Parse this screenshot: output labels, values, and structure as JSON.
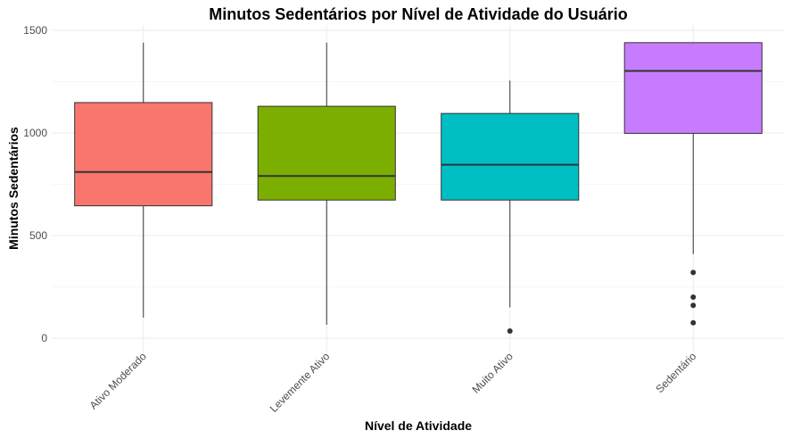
{
  "chart_data": {
    "type": "boxplot",
    "title": "Minutos Sedentários por Nível de Atividade do Usuário",
    "xlabel": "Nível de Atividade",
    "ylabel": "Minutos Sedentários",
    "ylim": [
      -30,
      1500
    ],
    "yticks": [
      0,
      500,
      1000,
      1500
    ],
    "grid": true,
    "categories": [
      "Ativo Moderado",
      "Levemente Ativo",
      "Muito Ativo",
      "Sedentário"
    ],
    "series": [
      {
        "category": "Ativo Moderado",
        "color": "#F8766D",
        "whisker_low": 100,
        "q1": 645,
        "median": 810,
        "q3": 1148,
        "whisker_high": 1440,
        "outliers": []
      },
      {
        "category": "Levemente Ativo",
        "color": "#7CAE00",
        "whisker_low": 65,
        "q1": 673,
        "median": 790,
        "q3": 1130,
        "whisker_high": 1440,
        "outliers": []
      },
      {
        "category": "Muito Ativo",
        "color": "#00BFC4",
        "whisker_low": 150,
        "q1": 673,
        "median": 845,
        "q3": 1095,
        "whisker_high": 1255,
        "outliers": [
          35
        ]
      },
      {
        "category": "Sedentário",
        "color": "#C77CFF",
        "whisker_low": 410,
        "q1": 998,
        "median": 1302,
        "q3": 1440,
        "whisker_high": 1440,
        "outliers": [
          320,
          200,
          160,
          75
        ]
      }
    ]
  }
}
